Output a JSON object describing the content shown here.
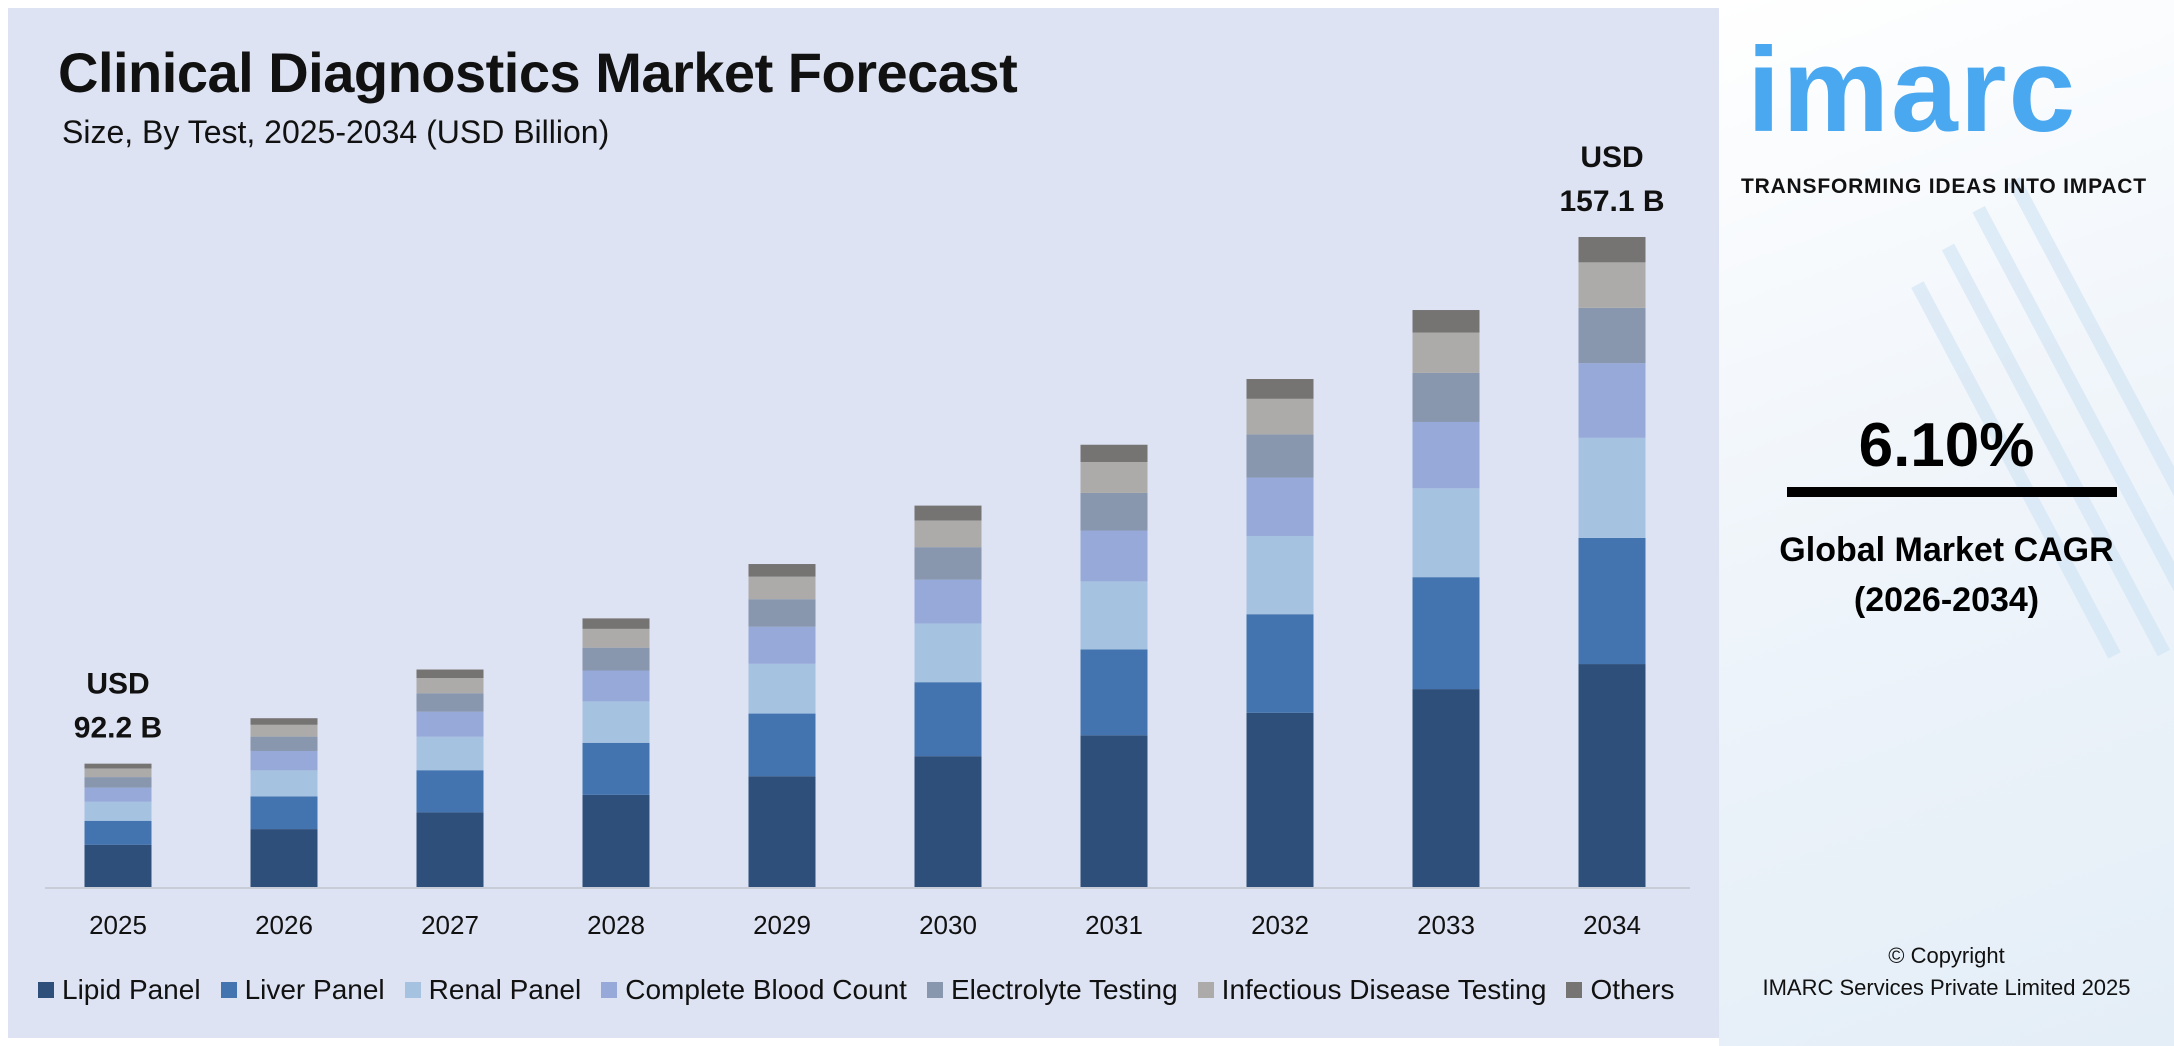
{
  "header": {
    "title": "Clinical Diagnostics Market Forecast",
    "subtitle": "Size, By Test, 2025-2034 (USD Billion)"
  },
  "chart_data": {
    "type": "bar",
    "stacked": true,
    "title": "Clinical Diagnostics Market Forecast",
    "subtitle": "Size, By Test, 2025-2034 (USD Billion)",
    "categories": [
      "2025",
      "2026",
      "2027",
      "2028",
      "2029",
      "2030",
      "2031",
      "2032",
      "2033",
      "2034"
    ],
    "totals": [
      92.2,
      97.8,
      103.8,
      110.1,
      116.8,
      124.0,
      131.5,
      139.6,
      148.1,
      157.1
    ],
    "shares": [
      0.343,
      0.194,
      0.154,
      0.115,
      0.085,
      0.07,
      0.039
    ],
    "series": [
      {
        "name": "Lipid Panel",
        "color": "#2e4f7a"
      },
      {
        "name": "Liver Panel",
        "color": "#4374b0"
      },
      {
        "name": "Renal Panel",
        "color": "#a6c2e1"
      },
      {
        "name": "Complete Blood Count",
        "color": "#96a9d8"
      },
      {
        "name": "Electrolyte Testing",
        "color": "#8896ae"
      },
      {
        "name": "Infectious Disease Testing",
        "color": "#acabaa"
      },
      {
        "name": "Others",
        "color": "#767373"
      }
    ],
    "annotations": [
      {
        "category": "2025",
        "line1": "USD",
        "line2": "92.2 B"
      },
      {
        "category": "2034",
        "line1": "USD",
        "line2": "157.1 B"
      }
    ],
    "ylim": [
      77,
      160
    ],
    "grid": false,
    "legend": "bottom"
  },
  "brand": {
    "logo": "imarc",
    "tagline": "TRANSFORMING IDEAS INTO IMPACT",
    "color": "#4aa8f0"
  },
  "cagr": {
    "value": "6.10%",
    "label_line1": "Global Market CAGR",
    "label_line2": "(2026-2034)"
  },
  "copyright": {
    "line1": "© Copyright",
    "line2": "IMARC Services Private Limited 2025"
  }
}
